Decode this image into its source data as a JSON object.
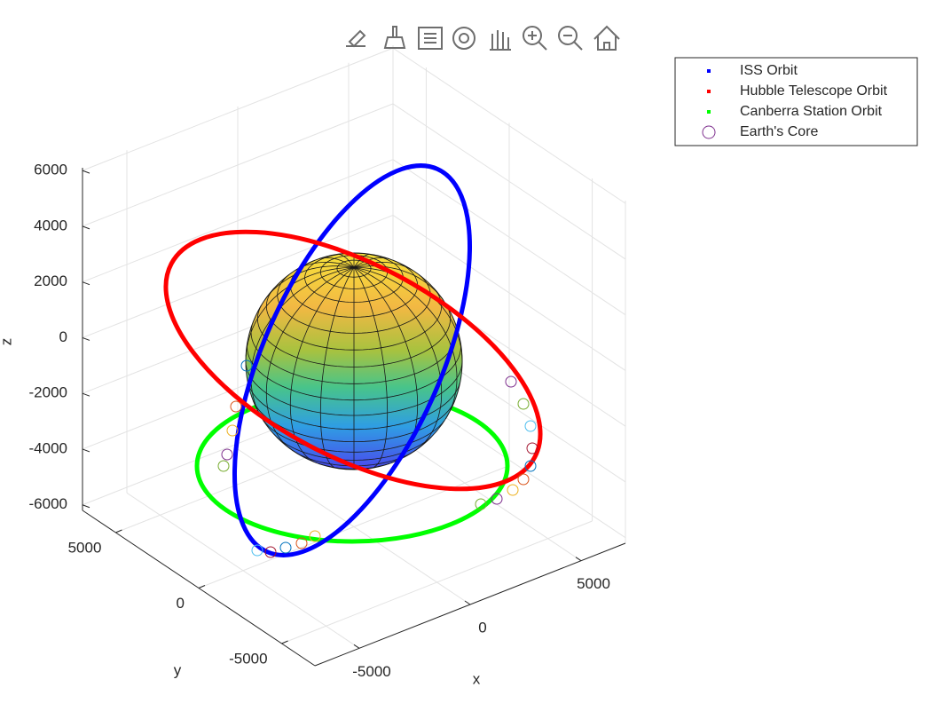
{
  "chart_data": {
    "type": "line3d",
    "series": [
      {
        "name": "ISS Orbit",
        "color": "#0000ff"
      },
      {
        "name": "Hubble Telescope Orbit",
        "color": "#ff0000"
      },
      {
        "name": "Canberra Station Orbit",
        "color": "#00ff00"
      },
      {
        "name": "Earth's Core",
        "color": "#7e2f8e"
      }
    ],
    "xlabel": "x",
    "ylabel": "y",
    "zlabel": "z",
    "xlim": [
      -7000,
      7000
    ],
    "ylim": [
      -7000,
      7000
    ],
    "zlim": [
      -6200,
      6100
    ],
    "xticks": [
      -5000,
      0,
      5000
    ],
    "yticks": [
      -5000,
      0,
      5000
    ],
    "zticks": [
      -6000,
      -4000,
      -2000,
      0,
      2000,
      4000,
      6000
    ],
    "grid": true
  }
}
